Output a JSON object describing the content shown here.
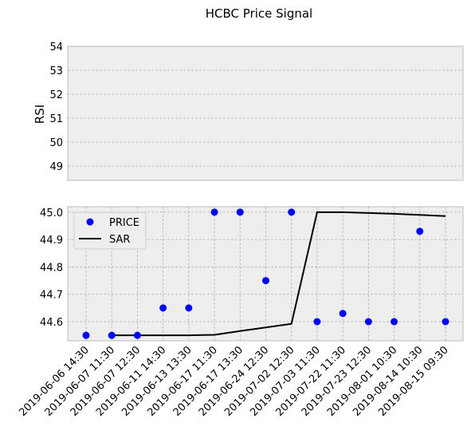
{
  "chart_data": [
    {
      "type": "line",
      "title": "HCBC Price Signal",
      "xlabel": "",
      "ylabel": "RSI",
      "ylim": [
        48.4,
        54.0
      ],
      "yticks": [
        49,
        50,
        51,
        52,
        53,
        54
      ],
      "grid": true,
      "series": []
    },
    {
      "type": "scatter",
      "xlabel": "",
      "ylabel": "",
      "ylim": [
        44.53,
        45.02
      ],
      "yticks": [
        "44.6",
        "44.7",
        "44.8",
        "44.9",
        "45.0"
      ],
      "grid": true,
      "legend_position": "top-left",
      "categories": [
        "2019-06-06 14:30",
        "2019-06-07 11:30",
        "2019-06-07 12:30",
        "2019-06-11 14:30",
        "2019-06-13 13:30",
        "2019-06-17 11:30",
        "2019-06-17 13:30",
        "2019-06-24 12:30",
        "2019-07-02 12:30",
        "2019-07-03 11:30",
        "2019-07-22 11:30",
        "2019-07-23 12:30",
        "2019-08-01 10:30",
        "2019-08-14 10:30",
        "2019-08-15 09:30"
      ],
      "series": [
        {
          "name": "PRICE",
          "mark": "scatter",
          "color": "#0000ff",
          "values": [
            44.55,
            44.55,
            44.55,
            44.65,
            44.65,
            45.0,
            45.0,
            44.75,
            45.0,
            44.6,
            44.63,
            44.6,
            44.6,
            44.93,
            44.6
          ]
        },
        {
          "name": "SAR",
          "mark": "line",
          "color": "#000000",
          "start_index": 1,
          "values": [
            44.55,
            44.55,
            44.55,
            44.55,
            44.552,
            44.566,
            44.579,
            44.592,
            45.0,
            45.0,
            44.997,
            44.994,
            44.99,
            44.986
          ]
        }
      ]
    }
  ]
}
